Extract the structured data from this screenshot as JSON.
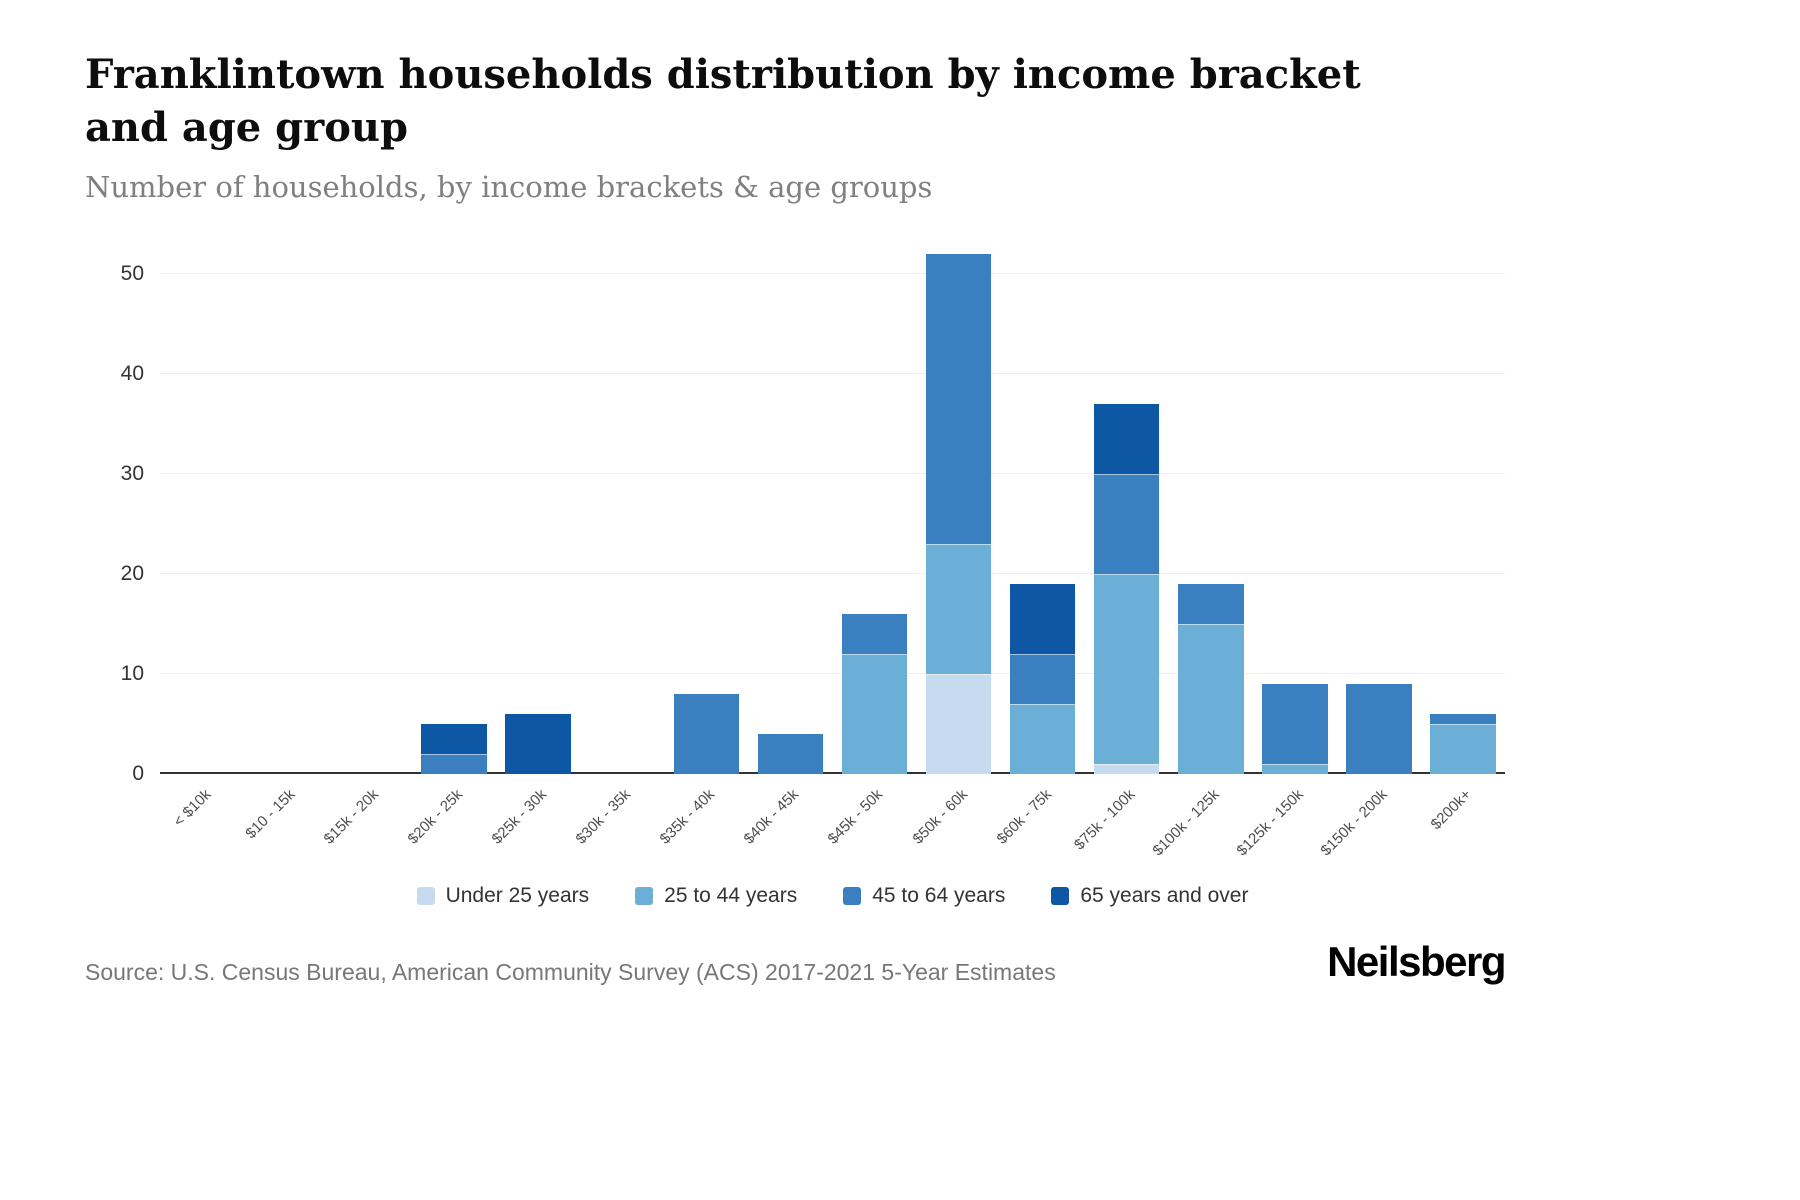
{
  "header": {
    "title": "Franklintown households distribution by income bracket and age group",
    "subtitle": "Number of households, by income brackets & age groups"
  },
  "footer": {
    "source": "Source: U.S. Census Bureau, American Community Survey (ACS) 2017-2021 5-Year Estimates",
    "logo": "Neilsberg"
  },
  "chart_data": {
    "type": "bar",
    "stacked": true,
    "title": "Franklintown households distribution by income bracket and age group",
    "subtitle": "Number of households, by income brackets & age groups",
    "xlabel": "",
    "ylabel": "",
    "ylim": [
      0,
      52
    ],
    "yticks": [
      0,
      10,
      20,
      30,
      40,
      50
    ],
    "grid": true,
    "legend_position": "bottom",
    "categories": [
      "< $10k",
      "$10 - 15k",
      "$15k - 20k",
      "$20k - 25k",
      "$25k - 30k",
      "$30k - 35k",
      "$35k - 40k",
      "$40k - 45k",
      "$45k - 50k",
      "$50k - 60k",
      "$60k - 75k",
      "$75k - 100k",
      "$100k - 125k",
      "$125k - 150k",
      "$150k - 200k",
      "$200k+"
    ],
    "series": [
      {
        "name": "Under 25 years",
        "color": "#c6dbef",
        "values": [
          0,
          0,
          0,
          0,
          0,
          0,
          0,
          0,
          0,
          10,
          0,
          1,
          0,
          0,
          0,
          0
        ]
      },
      {
        "name": "25 to 44 years",
        "color": "#6baed6",
        "values": [
          0,
          0,
          0,
          0,
          0,
          0,
          0,
          0,
          12,
          13,
          7,
          19,
          15,
          1,
          0,
          5
        ]
      },
      {
        "name": "45 to 64 years",
        "color": "#3a7fbf",
        "values": [
          0,
          0,
          0,
          2,
          0,
          0,
          8,
          4,
          4,
          29,
          5,
          10,
          4,
          8,
          9,
          1
        ]
      },
      {
        "name": "65 years and over",
        "color": "#0d57a5",
        "values": [
          0,
          0,
          0,
          3,
          6,
          0,
          0,
          0,
          0,
          0,
          7,
          7,
          0,
          0,
          0,
          0
        ]
      }
    ]
  }
}
